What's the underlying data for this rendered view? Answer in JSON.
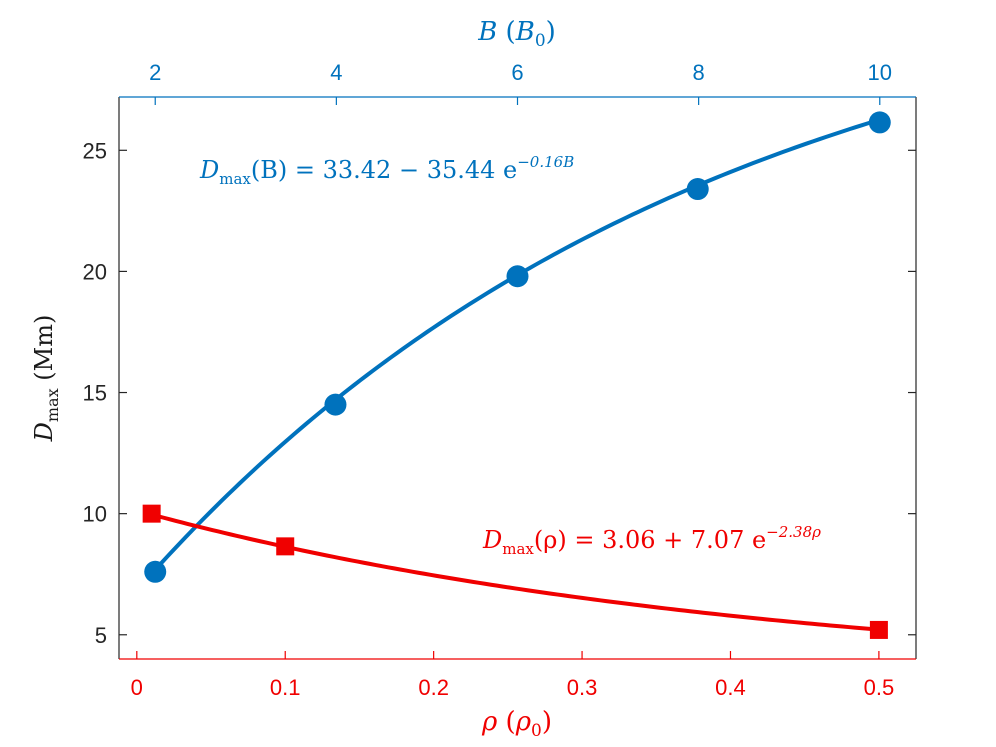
{
  "chart_data": {
    "type": "line",
    "colors": {
      "blue": "#0072bd",
      "red": "#f00000",
      "axis": "#262626"
    },
    "ylabel": {
      "main": "D",
      "sub": "max",
      "unit": " (Mm)"
    },
    "ylim": [
      4,
      27.2
    ],
    "yticks": [
      5,
      10,
      15,
      20,
      25
    ],
    "y_tick_labels": [
      "5",
      "10",
      "15",
      "20",
      "25"
    ],
    "top_axis": {
      "label": {
        "main": "B",
        "unit_open": " (",
        "unit_main": "B",
        "unit_sub": "0",
        "unit_close": ")"
      },
      "xlim": [
        1.6,
        10.4
      ],
      "ticks": [
        2,
        4,
        6,
        8,
        10
      ],
      "tick_labels": [
        "2",
        "4",
        "6",
        "8",
        "10"
      ]
    },
    "bottom_axis": {
      "label": {
        "main": "ρ",
        "unit_open": " (",
        "unit_main": "ρ",
        "unit_sub": "0",
        "unit_close": ")"
      },
      "xlim": [
        -0.012,
        0.525
      ],
      "ticks": [
        0,
        0.1,
        0.2,
        0.3,
        0.4,
        0.5
      ],
      "tick_labels": [
        "0",
        "0.1",
        "0.2",
        "0.3",
        "0.4",
        "0.5"
      ]
    },
    "series": [
      {
        "axis": "top",
        "marker": "circle",
        "points": [
          [
            2,
            7.6
          ],
          [
            3.99,
            14.5
          ],
          [
            6.0,
            19.8
          ],
          [
            7.99,
            23.4
          ],
          [
            10,
            26.15
          ]
        ],
        "fit": {
          "a": 33.42,
          "b": 35.44,
          "k": 0.16,
          "xrange": [
            2,
            10
          ]
        },
        "annotation": {
          "lhs_main": "D",
          "lhs_sub": "max",
          "lhs_arg": "(B) = 33.42 − 35.44 e",
          "exp": "−0.16B"
        }
      },
      {
        "axis": "bottom",
        "marker": "square",
        "points": [
          [
            0.01,
            10.0
          ],
          [
            0.1,
            8.65
          ],
          [
            0.5,
            5.2
          ]
        ],
        "fit": {
          "a": 3.06,
          "b": 7.07,
          "k": 2.38,
          "xrange": [
            0.01,
            0.5
          ]
        },
        "annotation": {
          "lhs_main": "D",
          "lhs_sub": "max",
          "lhs_arg": "(ρ) = 3.06 + 7.07 e",
          "exp": "−2.38ρ"
        }
      }
    ]
  }
}
